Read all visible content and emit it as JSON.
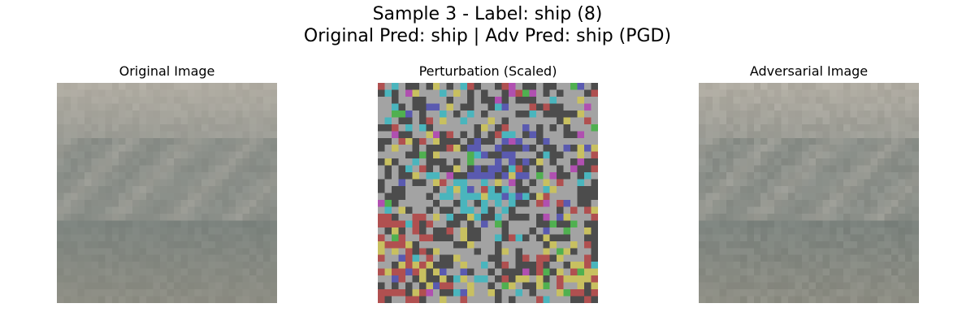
{
  "figure": {
    "title_line1": "Sample 3 - Label: ship (8)",
    "title_line2": "Original Pred: ship | Adv Pred: ship (PGD)"
  },
  "panels": [
    {
      "title": "Original Image"
    },
    {
      "title": "Perturbation (Scaled)"
    },
    {
      "title": "Adversarial Image"
    }
  ],
  "colors": {
    "background": "#ffffff",
    "perturbation_gray": "#a3a3a3",
    "perturbation_dark": "#4c4c4c",
    "perturbation_blue": "#5a5ab0",
    "perturbation_cyan": "#4ab5bd",
    "perturbation_red": "#b05050",
    "perturbation_yellow": "#c8c060",
    "perturbation_magenta": "#b050b0",
    "perturbation_green": "#50b050",
    "image_light": "#b0aca2",
    "image_mid": "#9a9b94",
    "image_dark": "#7d847f",
    "image_bottom": "#8e8e84"
  }
}
